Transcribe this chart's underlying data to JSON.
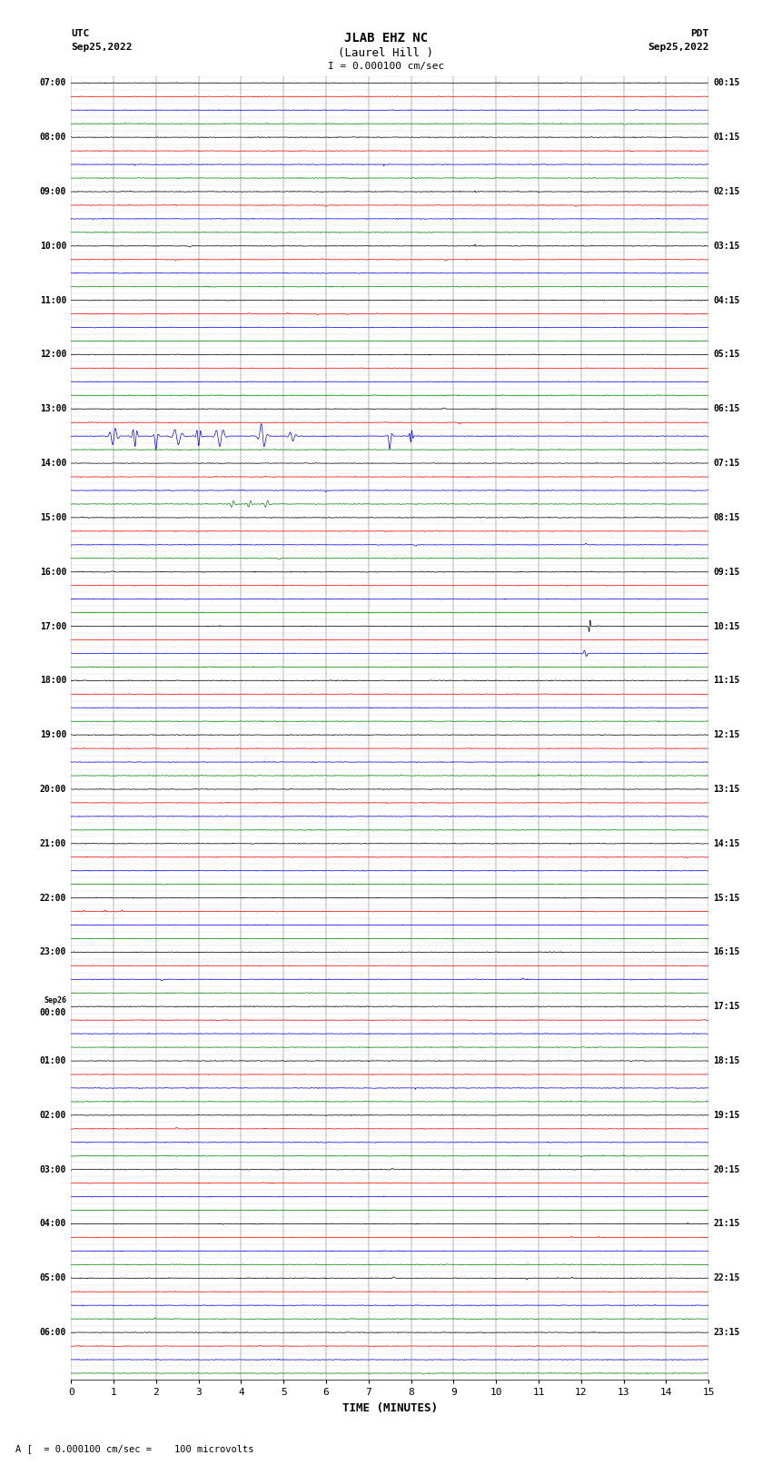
{
  "title_line1": "JLAB EHZ NC",
  "title_line2": "(Laurel Hill )",
  "scale_text": "I = 0.000100 cm/sec",
  "footer_text": "A [  = 0.000100 cm/sec =    100 microvolts",
  "utc_label": "UTC",
  "utc_date": "Sep25,2022",
  "pdt_label": "PDT",
  "pdt_date": "Sep25,2022",
  "xlabel": "TIME (MINUTES)",
  "x_ticks": [
    0,
    1,
    2,
    3,
    4,
    5,
    6,
    7,
    8,
    9,
    10,
    11,
    12,
    13,
    14,
    15
  ],
  "minutes_per_row": 15,
  "num_rows": 96,
  "row_colors": [
    "black",
    "red",
    "blue",
    "green"
  ],
  "bg_color": "white",
  "trace_linewidth": 0.5,
  "noise_amplitude": 0.012,
  "seed": 42
}
